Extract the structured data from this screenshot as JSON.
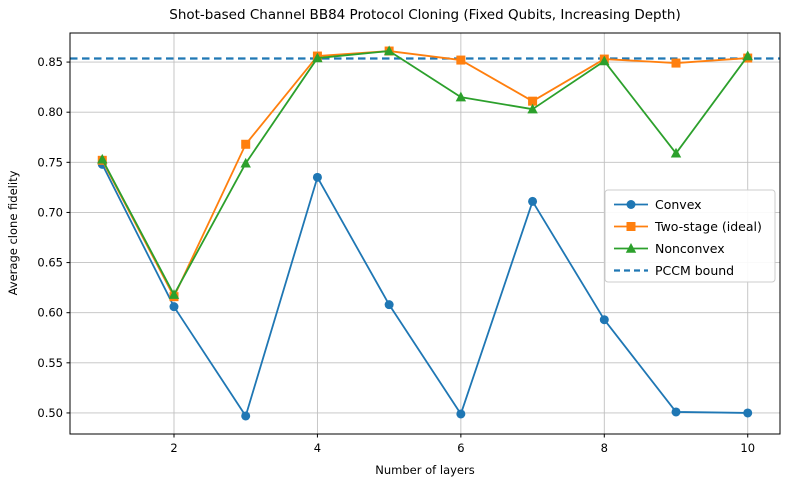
{
  "chart_data": {
    "type": "line",
    "title": "Shot-based Channel BB84 Protocol Cloning (Fixed Qubits, Increasing Depth)",
    "xlabel": "Number of layers",
    "ylabel": "Average clone fidelity",
    "x": [
      1,
      2,
      3,
      4,
      5,
      6,
      7,
      8,
      9,
      10
    ],
    "series": [
      {
        "name": "Convex",
        "marker": "circle",
        "color": "#1f77b4",
        "values": [
          0.748,
          0.606,
          0.497,
          0.735,
          0.608,
          0.499,
          0.711,
          0.593,
          0.501,
          0.5
        ]
      },
      {
        "name": "Two-stage (ideal)",
        "marker": "square",
        "color": "#ff7f0e",
        "values": [
          0.752,
          0.616,
          0.768,
          0.856,
          0.861,
          0.852,
          0.811,
          0.853,
          0.849,
          0.854
        ]
      },
      {
        "name": "Nonconvex",
        "marker": "triangle",
        "color": "#2ca02c",
        "values": [
          0.753,
          0.618,
          0.749,
          0.854,
          0.861,
          0.815,
          0.803,
          0.851,
          0.759,
          0.856
        ]
      }
    ],
    "bound": {
      "name": "PCCM bound",
      "value": 0.8536,
      "color": "#1f77b4",
      "style": "dashed"
    },
    "xlim": [
      0.55,
      10.45
    ],
    "ylim": [
      0.479,
      0.879
    ],
    "xticks": [
      2,
      4,
      6,
      8,
      10
    ],
    "yticks": [
      0.5,
      0.55,
      0.6,
      0.65,
      0.7,
      0.75,
      0.8,
      0.85
    ],
    "grid": true,
    "legend_position": "center right",
    "colors": {
      "grid": "#c0c0c0",
      "spine": "#000000",
      "legend_border": "#cccccc",
      "legend_bg": "#ffffff"
    }
  }
}
